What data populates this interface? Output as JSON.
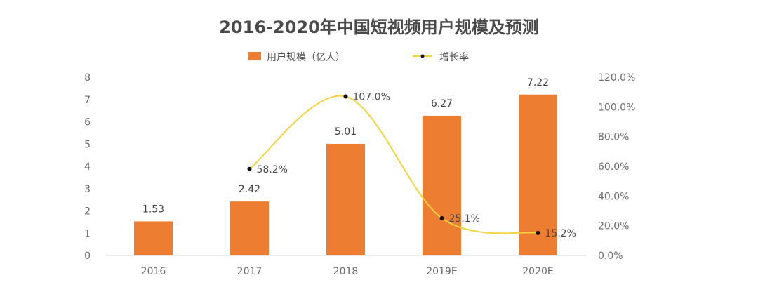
{
  "chart_data": {
    "type": "bar",
    "title": "2016-2020年中国短视频用户规模及预测",
    "categories": [
      "2016",
      "2017",
      "2018",
      "2019E",
      "2020E"
    ],
    "series": [
      {
        "name": "用户规模（亿人）",
        "type": "bar",
        "axis": "left",
        "color": "#ED7D31",
        "values": [
          1.53,
          2.42,
          5.01,
          6.27,
          7.22
        ],
        "labels": [
          "1.53",
          "2.42",
          "5.01",
          "6.27",
          "7.22"
        ]
      },
      {
        "name": "增长率",
        "type": "line",
        "axis": "right",
        "color": "#F6D23C",
        "marker_color": "#111111",
        "values": [
          null,
          58.2,
          107.0,
          25.1,
          15.2
        ],
        "labels": [
          "",
          "58.2%",
          "107.0%",
          "25.1%",
          "15.2%"
        ]
      }
    ],
    "y_left": {
      "min": 0,
      "max": 8,
      "ticks": [
        "0",
        "1",
        "2",
        "3",
        "4",
        "5",
        "6",
        "7",
        "8"
      ]
    },
    "y_right": {
      "min": 0,
      "max": 120,
      "ticks": [
        "0.0%",
        "20.0%",
        "40.0%",
        "60.0%",
        "80.0%",
        "100.0%",
        "120.0%"
      ]
    },
    "grid": false,
    "legend_position": "top-center"
  }
}
